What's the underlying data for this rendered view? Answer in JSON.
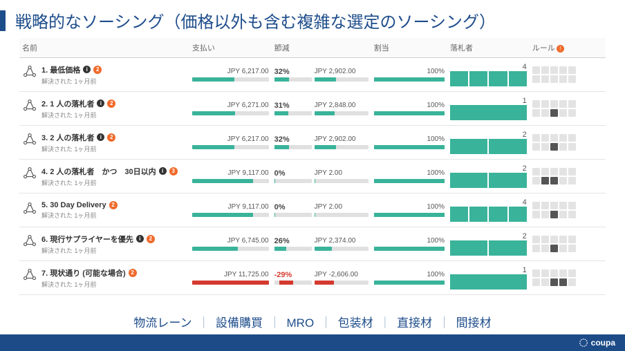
{
  "title": "戦略的なソーシング（価格以外も含む複雑な選定のソーシング）",
  "headers": {
    "name": "名前",
    "pay": "支払い",
    "save": "節減",
    "alloc": "割当",
    "winner": "落札者",
    "rules": "ルール"
  },
  "colors": {
    "accent": "#1e4d8b",
    "bar_green": "#39b39a",
    "bar_gray": "#e0e0e0",
    "bar_red": "#d43a2f",
    "badge_orange": "#f06a2b",
    "rule_off": "#e3e3e3",
    "rule_on": "#555555"
  },
  "rows": [
    {
      "title": "1. 最低価格",
      "info": true,
      "badge": "2",
      "sub": "解決された 1ヶ月前",
      "pay_amount": "JPY 6,217.00",
      "pay_fill_pct": 55,
      "pay_color": "#39b39a",
      "save_pct": "32%",
      "save_amt": "JPY 2,902.00",
      "save_fill_pct": 40,
      "save_color": "#39b39a",
      "save_neg": false,
      "alloc_pct": "100%",
      "win_count": "4",
      "win_boxes": 4,
      "rules_on": []
    },
    {
      "title": "2. 1 人の落札者",
      "info": true,
      "badge": "2",
      "sub": "解決された 1ヶ月前",
      "pay_amount": "JPY 6,271.00",
      "pay_fill_pct": 56,
      "pay_color": "#39b39a",
      "save_pct": "31%",
      "save_amt": "JPY 2,848.00",
      "save_fill_pct": 38,
      "save_color": "#39b39a",
      "save_neg": false,
      "alloc_pct": "100%",
      "win_count": "1",
      "win_boxes": 1,
      "rules_on": [
        7
      ]
    },
    {
      "title": "3. 2 人の落札者",
      "info": true,
      "badge": "2",
      "sub": "解決された 1ヶ月前",
      "pay_amount": "JPY 6,217.00",
      "pay_fill_pct": 55,
      "pay_color": "#39b39a",
      "save_pct": "32%",
      "save_amt": "JPY 2,902.00",
      "save_fill_pct": 40,
      "save_color": "#39b39a",
      "save_neg": false,
      "alloc_pct": "100%",
      "win_count": "2",
      "win_boxes": 2,
      "rules_on": [
        7
      ]
    },
    {
      "title": "4. 2 人の落札者　かつ　30日以内",
      "info": true,
      "badge": "3",
      "sub": "解決された 1ヶ月前",
      "pay_amount": "JPY 9,117.00",
      "pay_fill_pct": 80,
      "pay_color": "#39b39a",
      "save_pct": "0%",
      "save_amt": "JPY 2.00",
      "save_fill_pct": 2,
      "save_color": "#39b39a",
      "save_neg": false,
      "alloc_pct": "100%",
      "win_count": "2",
      "win_boxes": 2,
      "rules_on": [
        6,
        7
      ]
    },
    {
      "title": "5. 30 Day Delivery",
      "info": false,
      "badge": "2",
      "sub": "解決された 1ヶ月前",
      "pay_amount": "JPY 9,117.00",
      "pay_fill_pct": 80,
      "pay_color": "#39b39a",
      "save_pct": "0%",
      "save_amt": "JPY 2.00",
      "save_fill_pct": 2,
      "save_color": "#39b39a",
      "save_neg": false,
      "alloc_pct": "100%",
      "win_count": "4",
      "win_boxes": 4,
      "rules_on": [
        7
      ]
    },
    {
      "title": "6. 現行サプライヤーを優先",
      "info": true,
      "badge": "2",
      "sub": "解決された 1ヶ月前",
      "pay_amount": "JPY 6,745.00",
      "pay_fill_pct": 60,
      "pay_color": "#39b39a",
      "save_pct": "26%",
      "save_amt": "JPY 2,374.00",
      "save_fill_pct": 32,
      "save_color": "#39b39a",
      "save_neg": false,
      "alloc_pct": "100%",
      "win_count": "2",
      "win_boxes": 2,
      "rules_on": [
        7
      ]
    },
    {
      "title": "7. 現状通り (可能な場合)",
      "info": false,
      "badge": "2",
      "sub": "解決された 1ヶ月前",
      "pay_amount": "JPY 11,725.00",
      "pay_fill_pct": 100,
      "pay_color": "#d43a2f",
      "save_pct": "-29%",
      "save_amt": "JPY -2,606.00",
      "save_fill_pct": 36,
      "save_color": "#d43a2f",
      "save_neg": true,
      "alloc_pct": "100%",
      "win_count": "1",
      "win_boxes": 1,
      "rules_on": [
        7,
        8
      ]
    }
  ],
  "categories": [
    "物流レーン",
    "設備購買",
    "MRO",
    "包装材",
    "直接材",
    "間接材"
  ],
  "footer": {
    "brand": "coupa"
  }
}
